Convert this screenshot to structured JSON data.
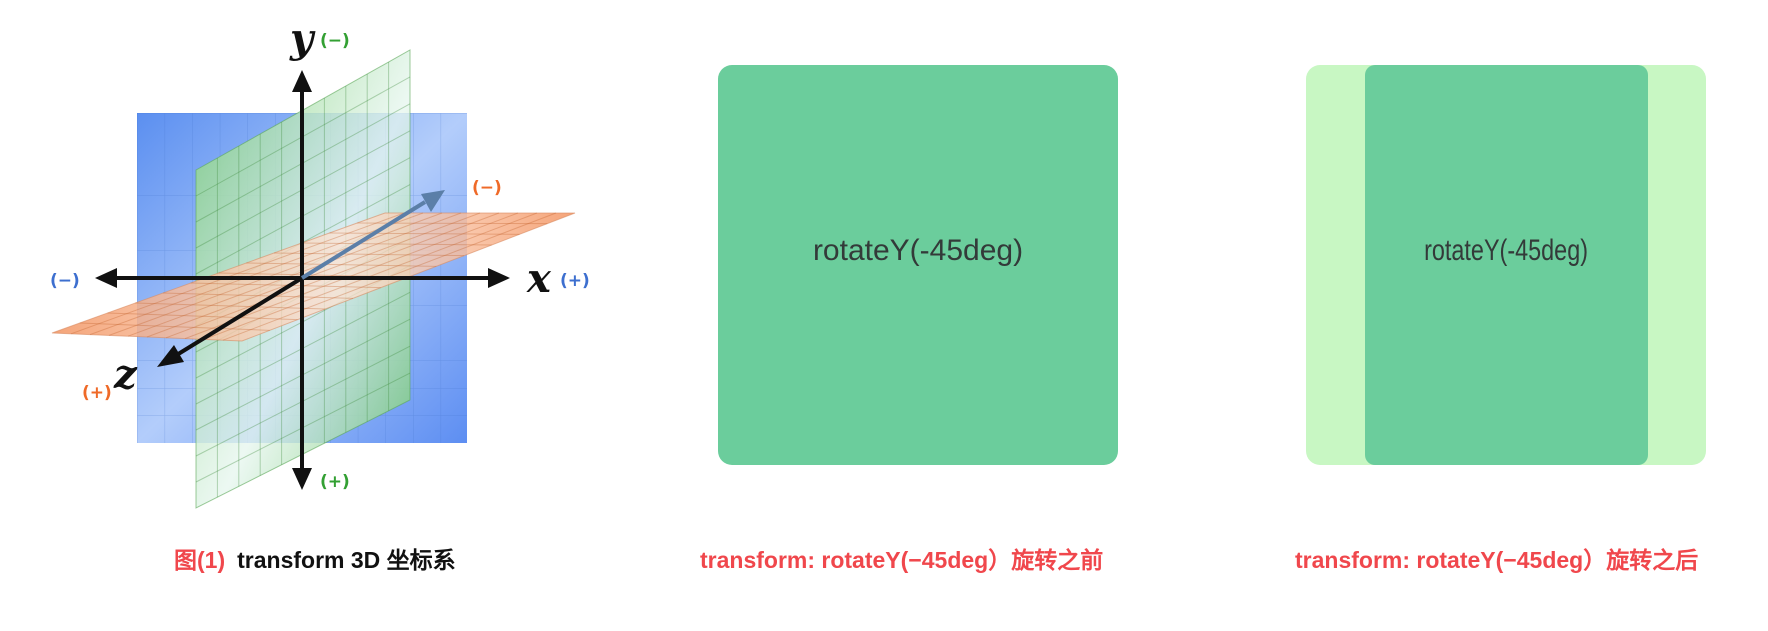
{
  "figure_1": {
    "axes": {
      "x": {
        "name": "x",
        "negative_label": "(−)",
        "positive_label": "(+)",
        "color": "#3d6fcf"
      },
      "y": {
        "name": "y",
        "negative_label": "(+)",
        "positive_label": "(−)",
        "color": "#33a033"
      },
      "z": {
        "name": "z",
        "negative_label": "(−)",
        "positive_label": "(+)",
        "color": "#ef6a28"
      }
    },
    "planes": {
      "xy_color": "#6f9df3",
      "yz_color": "#8fd68a",
      "xz_color": "#f4a176"
    },
    "caption_tag": "图(1)",
    "caption_text": "transform 3D 坐标系"
  },
  "figure_2": {
    "box_label": "rotateY(-45deg)",
    "box_color": "#6bcd9c",
    "caption": "transform: rotateY(−45deg）旋转之前"
  },
  "figure_3": {
    "box_label": "rotateY(-45deg)",
    "box_color": "#6bcd9c",
    "ghost_color": "#c8f7c3",
    "caption": "transform: rotateY(−45deg）旋转之后"
  }
}
